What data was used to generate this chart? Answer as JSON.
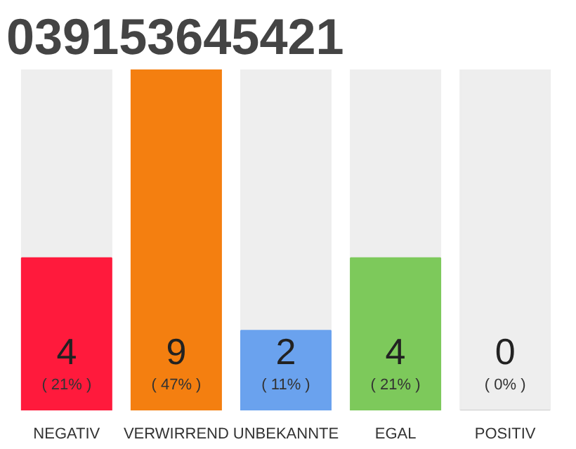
{
  "chart_data": {
    "type": "bar",
    "title": "039153645421",
    "categories": [
      "NEGATIV",
      "VERWIRREND",
      "UNBEKANNTE",
      "EGAL",
      "POSITIV"
    ],
    "values": [
      21,
      47,
      11,
      21,
      0
    ],
    "annotations": [
      "4",
      "9",
      "2",
      "4",
      "0"
    ],
    "colors": [
      "#ff1a3c",
      "#f47f10",
      "#6aa2ee",
      "#7dc95b",
      "#cccccc"
    ],
    "value_labels": [
      "( 21% )",
      "( 47% )",
      "( 11% )",
      "( 21% )",
      "( 0% )"
    ],
    "grid": false,
    "tick_labels": "x"
  }
}
